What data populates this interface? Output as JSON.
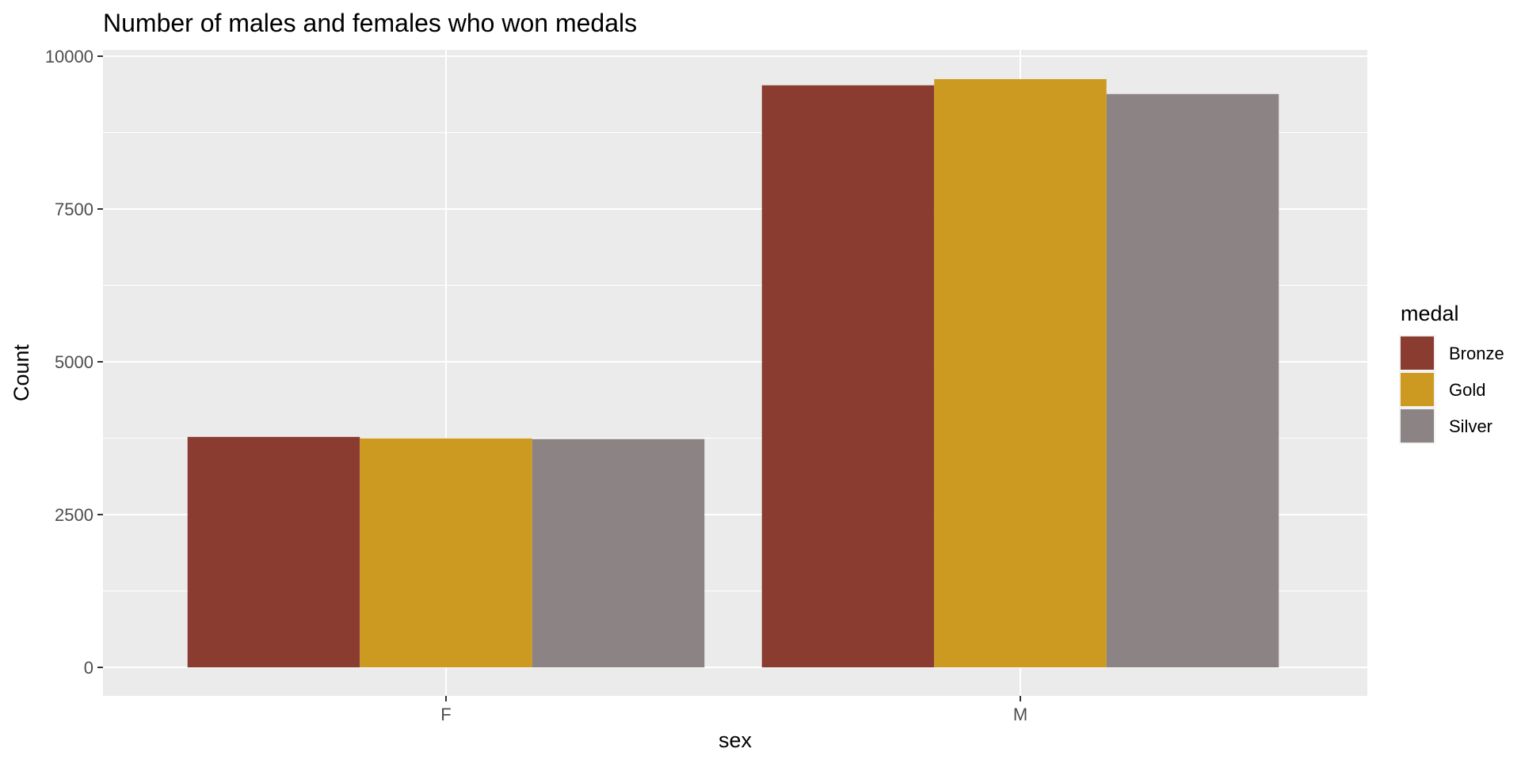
{
  "chart_data": {
    "type": "bar",
    "title": "Number of males and females who won medals",
    "xlabel": "sex",
    "ylabel": "Count",
    "categories": [
      "F",
      "M"
    ],
    "ylim": [
      0,
      10000
    ],
    "yticks": [
      0,
      2500,
      5000,
      7500,
      10000
    ],
    "ytick_labels": [
      "0",
      "2500",
      "5000",
      "7500",
      "10000"
    ],
    "grid": true,
    "legend": {
      "title": "medal",
      "position": "right"
    },
    "series": [
      {
        "name": "Bronze",
        "color": "#8B3C31",
        "values": [
          3771,
          9524
        ]
      },
      {
        "name": "Gold",
        "color": "#CC9A20",
        "values": [
          3747,
          9625
        ]
      },
      {
        "name": "Silver",
        "color": "#8C8384",
        "values": [
          3735,
          9381
        ]
      }
    ]
  }
}
